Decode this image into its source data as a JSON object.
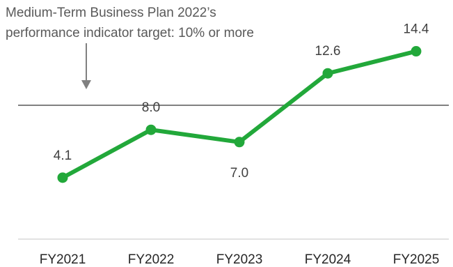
{
  "chart_data": {
    "type": "line",
    "categories": [
      "FY2021",
      "FY2022",
      "FY2023",
      "FY2024",
      "FY2025"
    ],
    "series": [
      {
        "values": [
          4.1,
          8.0,
          7.0,
          12.6,
          14.4
        ],
        "value_labels": [
          "4.1",
          "8.0",
          "7.0",
          "12.6",
          "14.4"
        ],
        "color": "#22a83a"
      }
    ],
    "target": {
      "value": 10,
      "line_color": "#808080",
      "annotation": [
        "Medium-Term Business Plan 2022’s",
        "performance indicator target: 10% or more"
      ]
    },
    "grid": false,
    "legend": "none",
    "colors": {
      "axis": "#d9d9d9",
      "text": "#595959"
    }
  }
}
